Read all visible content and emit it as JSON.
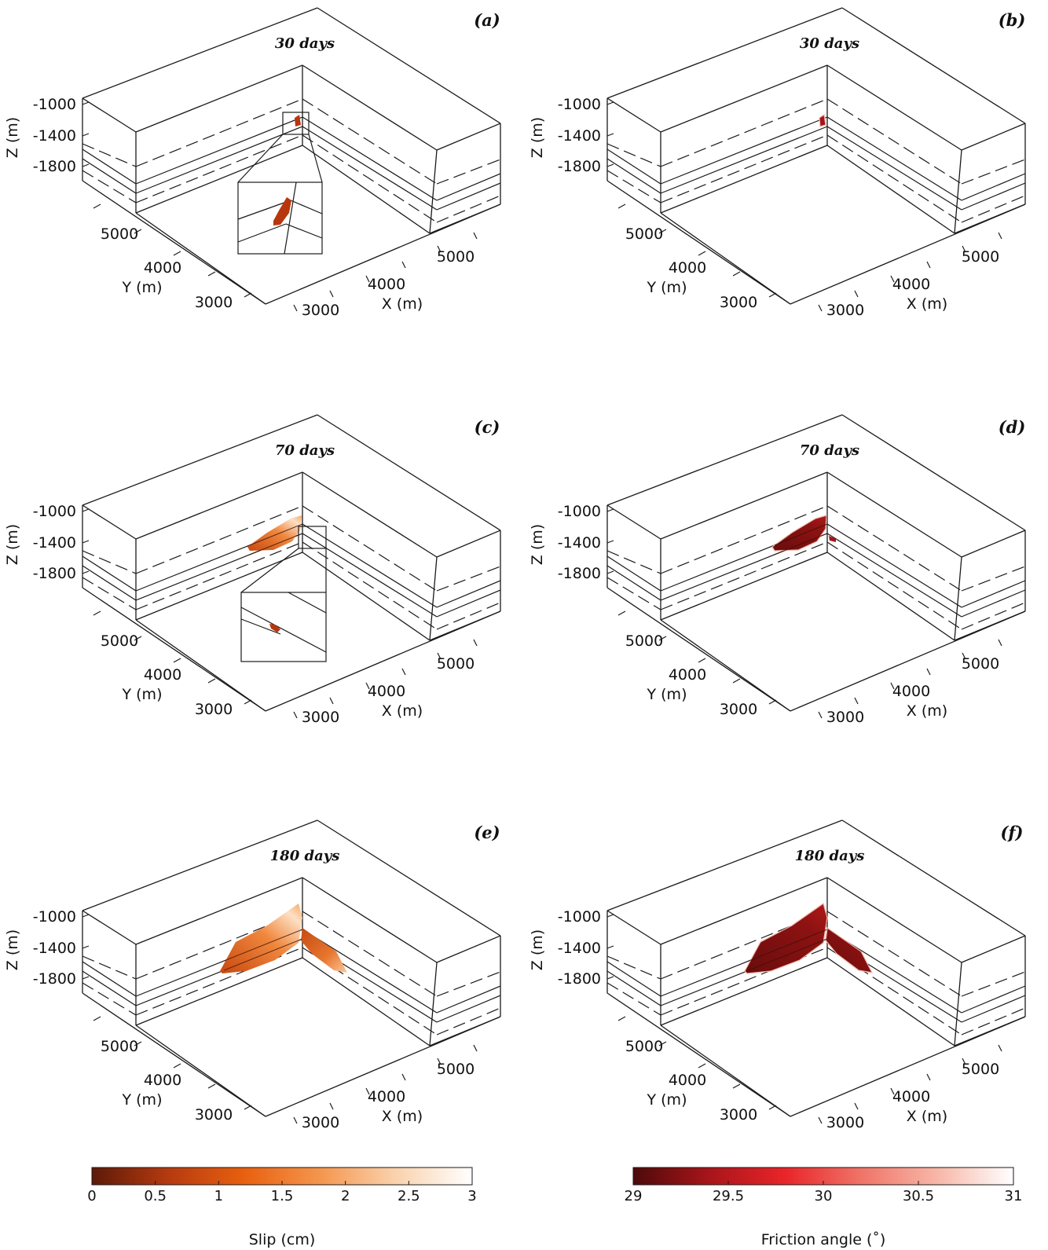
{
  "panels": [
    {
      "id": "a",
      "letter": "(a)",
      "time": "30 days",
      "quantity": "slip",
      "patch_stage": 1,
      "inset": true
    },
    {
      "id": "b",
      "letter": "(b)",
      "time": "30 days",
      "quantity": "friction",
      "patch_stage": 1,
      "inset": false
    },
    {
      "id": "c",
      "letter": "(c)",
      "time": "70 days",
      "quantity": "slip",
      "patch_stage": 2,
      "inset": true
    },
    {
      "id": "d",
      "letter": "(d)",
      "time": "70 days",
      "quantity": "friction",
      "patch_stage": 2,
      "inset": false
    },
    {
      "id": "e",
      "letter": "(e)",
      "time": "180 days",
      "quantity": "slip",
      "patch_stage": 3,
      "inset": false
    },
    {
      "id": "f",
      "letter": "(f)",
      "time": "180 days",
      "quantity": "friction",
      "patch_stage": 3,
      "inset": false
    }
  ],
  "axes": {
    "z_label": "Z (m)",
    "z_ticks": [
      "-1000",
      "-1400",
      "-1800"
    ],
    "y_label": "Y (m)",
    "y_ticks": [
      "5000",
      "4000",
      "3000"
    ],
    "x_label": "X (m)",
    "x_ticks": [
      "3000",
      "4000",
      "5000"
    ]
  },
  "colorbars": [
    {
      "id": "slip",
      "title": "Slip (cm)",
      "ticks": [
        "0",
        "0.5",
        "1",
        "1.5",
        "2",
        "2.5",
        "3"
      ],
      "range": [
        0,
        3
      ],
      "colors": [
        "#5c1a08",
        "#b53a10",
        "#e8600f",
        "#f4964e",
        "#fad2ae",
        "#ffffff"
      ]
    },
    {
      "id": "friction",
      "title": "Friction angle (˚)",
      "ticks": [
        "29",
        "29.5",
        "30",
        "30.5",
        "31"
      ],
      "range": [
        29,
        31
      ],
      "colors": [
        "#4d0a0a",
        "#a8151a",
        "#e8252a",
        "#f07468",
        "#f7b7a8",
        "#ffffff"
      ]
    }
  ]
}
